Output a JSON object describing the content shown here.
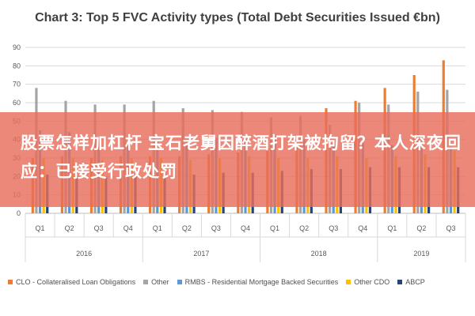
{
  "chart_data": {
    "type": "bar",
    "title": "Chart 3: Top 5 FVC Activity types (Total Debt Securities Issued €bn)",
    "ylim": [
      0,
      90
    ],
    "yticks": [
      0,
      10,
      20,
      30,
      40,
      50,
      60,
      70,
      80,
      90
    ],
    "grid": true,
    "legend_position": "bottom",
    "categories": [
      "Q1",
      "Q2",
      "Q3",
      "Q4",
      "Q1",
      "Q2",
      "Q3",
      "Q4",
      "Q1",
      "Q2",
      "Q3",
      "Q4",
      "Q1",
      "Q2",
      "Q3"
    ],
    "years": [
      {
        "label": "2016",
        "count": 4
      },
      {
        "label": "2017",
        "count": 4
      },
      {
        "label": "2018",
        "count": 4
      },
      {
        "label": "2019",
        "count": 3
      }
    ],
    "series": [
      {
        "name": "CLO - Collateralised Loan Obligations",
        "color": "#ED7D31",
        "values": [
          30,
          31,
          30,
          31,
          31,
          31,
          32,
          33,
          35,
          37,
          57,
          61,
          68,
          75,
          83
        ]
      },
      {
        "name": "Other",
        "color": "#A5A5A5",
        "values": [
          68,
          61,
          59,
          59,
          61,
          57,
          56,
          55,
          52,
          53,
          48,
          60,
          59,
          66,
          67
        ]
      },
      {
        "name": "RMBS - Residential Mortgage Backed Securities",
        "color": "#5B9BD5",
        "values": [
          45,
          44,
          40,
          40,
          40,
          39,
          41,
          41,
          41,
          40,
          39,
          38,
          37,
          38,
          36
        ]
      },
      {
        "name": "Other CDO",
        "color": "#FFC000",
        "values": [
          30,
          30,
          29,
          30,
          30,
          29,
          30,
          31,
          30,
          30,
          31,
          30,
          31,
          32,
          34
        ]
      },
      {
        "name": "ABCP",
        "color": "#264478",
        "values": [
          21,
          19,
          20,
          21,
          22,
          21,
          22,
          22,
          23,
          24,
          24,
          25,
          25,
          25,
          25
        ]
      }
    ]
  },
  "overlay": {
    "text": "股票怎样加杠杆 宝石老舅因醉酒打架被拘留？本人深夜回应：已接受行政处罚"
  }
}
